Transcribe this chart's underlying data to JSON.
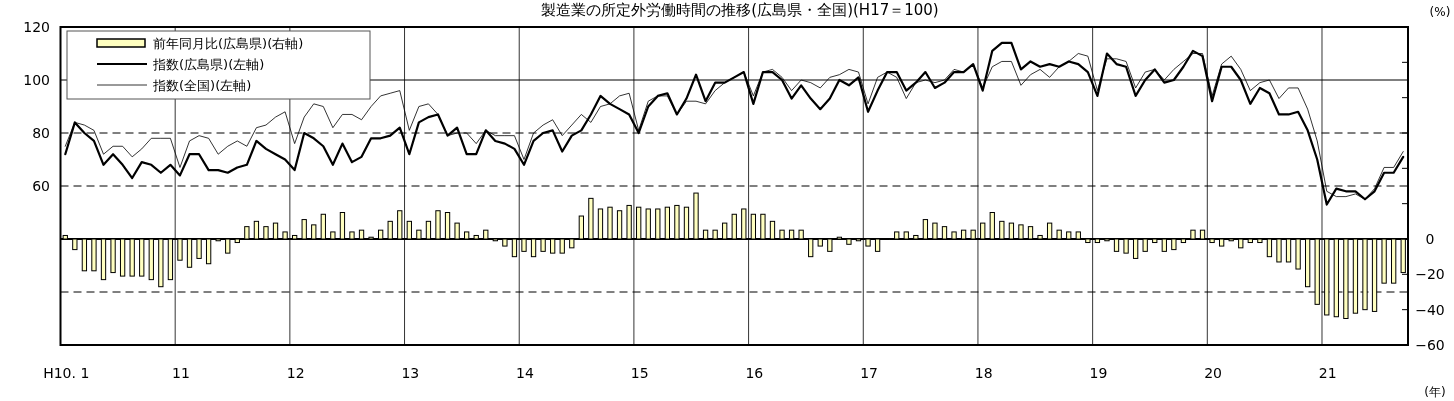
{
  "chart_data": {
    "type": "bar",
    "title": "製造業の所定外労働時間の推移(広島県・全国)(H17＝100)",
    "xlabel": "(年)",
    "y2label": "(%)",
    "categories": [
      "H10. 1",
      null,
      null,
      null,
      null,
      null,
      null,
      null,
      null,
      null,
      null,
      null,
      "11",
      null,
      null,
      null,
      null,
      null,
      null,
      null,
      null,
      null,
      null,
      null,
      "12",
      null,
      null,
      null,
      null,
      null,
      null,
      null,
      null,
      null,
      null,
      null,
      "13",
      null,
      null,
      null,
      null,
      null,
      null,
      null,
      null,
      null,
      null,
      null,
      "14",
      null,
      null,
      null,
      null,
      null,
      null,
      null,
      null,
      null,
      null,
      null,
      "15",
      null,
      null,
      null,
      null,
      null,
      null,
      null,
      null,
      null,
      null,
      null,
      "16",
      null,
      null,
      null,
      null,
      null,
      null,
      null,
      null,
      null,
      null,
      null,
      "17",
      null,
      null,
      null,
      null,
      null,
      null,
      null,
      null,
      null,
      null,
      null,
      "18",
      null,
      null,
      null,
      null,
      null,
      null,
      null,
      null,
      null,
      null,
      null,
      "19",
      null,
      null,
      null,
      null,
      null,
      null,
      null,
      null,
      null,
      null,
      null,
      "20",
      null,
      null,
      null,
      null,
      null,
      null,
      null,
      null,
      null,
      null,
      null,
      "21",
      null,
      null,
      null,
      null,
      null,
      null,
      null,
      null
    ],
    "ylim": [
      0,
      120
    ],
    "yticks": [
      60,
      80,
      100,
      120
    ],
    "y2lim": [
      -60,
      120
    ],
    "y2ticks": [
      -60,
      -40,
      -20,
      0,
      {
        "value": 20,
        "label": null
      },
      {
        "value": 40,
        "label": null
      },
      {
        "value": 60,
        "label": null
      },
      {
        "value": 80,
        "label": null
      },
      {
        "value": 100,
        "label": null
      }
    ],
    "grid": "x",
    "legend": "top left",
    "ref_lines": [
      {
        "axis": "y",
        "value": 100,
        "color": "#000000",
        "line_style": "solid"
      },
      {
        "axis": "y",
        "value": 80,
        "color": "#000000",
        "line_style": "dashed"
      },
      {
        "axis": "y",
        "value": 60,
        "color": "#000000",
        "line_style": "dashed"
      },
      {
        "axis": "y",
        "value": 20,
        "color": "#000000",
        "line_style": "dashed"
      },
      {
        "axis": "y2",
        "value": 0,
        "color": "#000000",
        "line_style": "solid"
      }
    ],
    "series": [
      {
        "name": "前年同月比(広島県)(右軸)",
        "axis": "y2",
        "color": "#ffffc0",
        "values": [
          2,
          -6,
          -18,
          -18,
          -23,
          -19,
          -21,
          -21,
          -21,
          -23,
          -27,
          -23,
          -12,
          -16,
          -11,
          -14,
          -1,
          -8,
          -2,
          7,
          10,
          7,
          9,
          4,
          2,
          11,
          8,
          14,
          4,
          15,
          4,
          5,
          1,
          5,
          10,
          16,
          10,
          5,
          10,
          16,
          15,
          9,
          4,
          2,
          5,
          -1,
          -4,
          -10,
          -7,
          -10,
          -7,
          -8,
          -8,
          -5,
          13,
          23,
          17,
          18,
          16,
          19,
          18,
          17,
          17,
          18,
          19,
          18,
          26,
          5,
          5,
          9,
          14,
          17,
          14,
          14,
          10,
          5,
          5,
          5,
          -10,
          -4,
          -7,
          1,
          -3,
          -1,
          -4,
          -7,
          0,
          4,
          4,
          2,
          11,
          9,
          7,
          4,
          5,
          5,
          9,
          15,
          10,
          9,
          8,
          7,
          2,
          9,
          5,
          4,
          4,
          -2,
          -2,
          -1,
          -7,
          -8,
          -11,
          -7,
          -2,
          -7,
          -6,
          -2,
          5,
          5,
          -2,
          -4,
          -1,
          -5,
          -2,
          -2,
          -10,
          -13,
          -13,
          -17,
          -27,
          -37,
          -43,
          -44,
          -45,
          -42,
          -40,
          -41,
          -25,
          -25,
          -19
        ]
      },
      {
        "name": "指数(広島県)(左軸)",
        "type": "line",
        "color": "#000000",
        "values": [
          72,
          84,
          80,
          77,
          68,
          72,
          68,
          63,
          69,
          68,
          65,
          68,
          64,
          72,
          72,
          66,
          66,
          65,
          67,
          68,
          77,
          74,
          72,
          70,
          66,
          80,
          78,
          75,
          68,
          76,
          69,
          71,
          78,
          78,
          79,
          82,
          72,
          84,
          86,
          87,
          79,
          82,
          72,
          72,
          81,
          77,
          76,
          74,
          68,
          77,
          80,
          81,
          73,
          79,
          81,
          87,
          94,
          91,
          89,
          87,
          80,
          90,
          94,
          95,
          87,
          93,
          102,
          92,
          99,
          99,
          101,
          103,
          91,
          103,
          103,
          100,
          93,
          98,
          93,
          89,
          93,
          100,
          98,
          101,
          88,
          96,
          103,
          103,
          96,
          99,
          103,
          97,
          99,
          103,
          103,
          106,
          96,
          111,
          114,
          114,
          104,
          107,
          105,
          106,
          105,
          107,
          106,
          103,
          94,
          110,
          106,
          105,
          94,
          100,
          104,
          99,
          100,
          105,
          111,
          109,
          92,
          105,
          105,
          100,
          91,
          97,
          95,
          87,
          87,
          88,
          81,
          70,
          53,
          59,
          58,
          58,
          55,
          58,
          65,
          65,
          71
        ]
      },
      {
        "name": "指数(全国)(左軸)",
        "type": "line",
        "color": "#000000",
        "values": [
          75,
          84,
          83,
          81,
          72,
          75,
          75,
          71,
          74,
          78,
          78,
          78,
          67,
          77,
          79,
          78,
          72,
          75,
          77,
          75,
          82,
          83,
          86,
          88,
          76,
          86,
          91,
          90,
          82,
          87,
          87,
          85,
          90,
          94,
          95,
          96,
          81,
          90,
          91,
          87,
          79,
          80,
          80,
          76,
          81,
          79,
          79,
          79,
          70,
          80,
          83,
          85,
          79,
          83,
          87,
          84,
          90,
          91,
          94,
          95,
          81,
          92,
          94,
          94,
          87,
          92,
          92,
          91,
          96,
          99,
          101,
          103,
          94,
          103,
          104,
          101,
          96,
          100,
          99,
          97,
          101,
          102,
          104,
          103,
          91,
          101,
          103,
          101,
          93,
          99,
          100,
          99,
          100,
          104,
          103,
          106,
          97,
          105,
          107,
          107,
          98,
          102,
          104,
          101,
          105,
          107,
          110,
          109,
          96,
          108,
          108,
          107,
          97,
          103,
          104,
          100,
          104,
          107,
          110,
          110,
          94,
          106,
          109,
          104,
          96,
          99,
          100,
          93,
          97,
          97,
          89,
          77,
          58,
          56,
          56,
          57,
          55,
          59,
          67,
          67,
          73
        ]
      }
    ]
  }
}
